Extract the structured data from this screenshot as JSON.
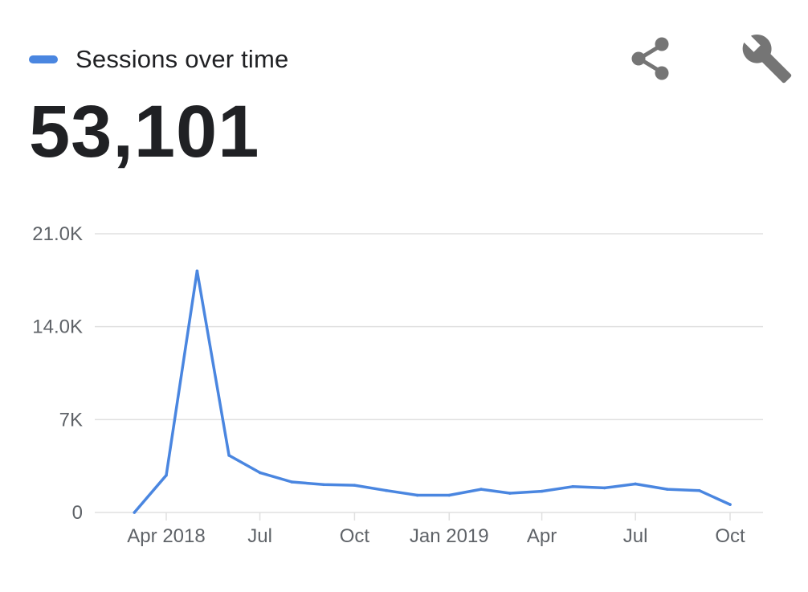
{
  "header": {
    "legend_label": "Sessions over time",
    "total": "53,101",
    "share_icon": "share-icon",
    "settings_icon": "wrench-icon"
  },
  "colors": {
    "series": "#4a86e0",
    "grid": "#e0e0e0",
    "text": "#202124",
    "axis_text": "#5f6368",
    "icon": "#757575"
  },
  "chart_data": {
    "type": "line",
    "title": "",
    "xlabel": "",
    "ylabel": "",
    "ylim": [
      0,
      21000
    ],
    "grid": true,
    "legend": "top-left",
    "y_ticks": [
      {
        "value": 21000,
        "label": "21.0K"
      },
      {
        "value": 14000,
        "label": "14.0K"
      },
      {
        "value": 7000,
        "label": "7K"
      },
      {
        "value": 0,
        "label": "0"
      }
    ],
    "x_ticks": [
      {
        "date": "2018-04-01",
        "label": "Apr 2018"
      },
      {
        "date": "2018-07-01",
        "label": "Jul"
      },
      {
        "date": "2018-10-01",
        "label": "Oct"
      },
      {
        "date": "2019-01-01",
        "label": "Jan 2019"
      },
      {
        "date": "2019-04-01",
        "label": "Apr"
      },
      {
        "date": "2019-07-01",
        "label": "Jul"
      },
      {
        "date": "2019-10-01",
        "label": "Oct"
      }
    ],
    "series": [
      {
        "name": "Sessions over time",
        "x": [
          "2018-03-01",
          "2018-04-01",
          "2018-05-01",
          "2018-06-01",
          "2018-07-01",
          "2018-08-01",
          "2018-09-01",
          "2018-10-01",
          "2018-11-01",
          "2018-12-01",
          "2019-01-01",
          "2019-02-01",
          "2019-03-01",
          "2019-04-01",
          "2019-05-01",
          "2019-06-01",
          "2019-07-01",
          "2019-08-01",
          "2019-09-01",
          "2019-10-01"
        ],
        "values": [
          0,
          2800,
          18200,
          4300,
          3000,
          2300,
          2100,
          2050,
          1650,
          1300,
          1300,
          1750,
          1450,
          1600,
          1950,
          1850,
          2150,
          1750,
          1650,
          600
        ]
      }
    ]
  }
}
